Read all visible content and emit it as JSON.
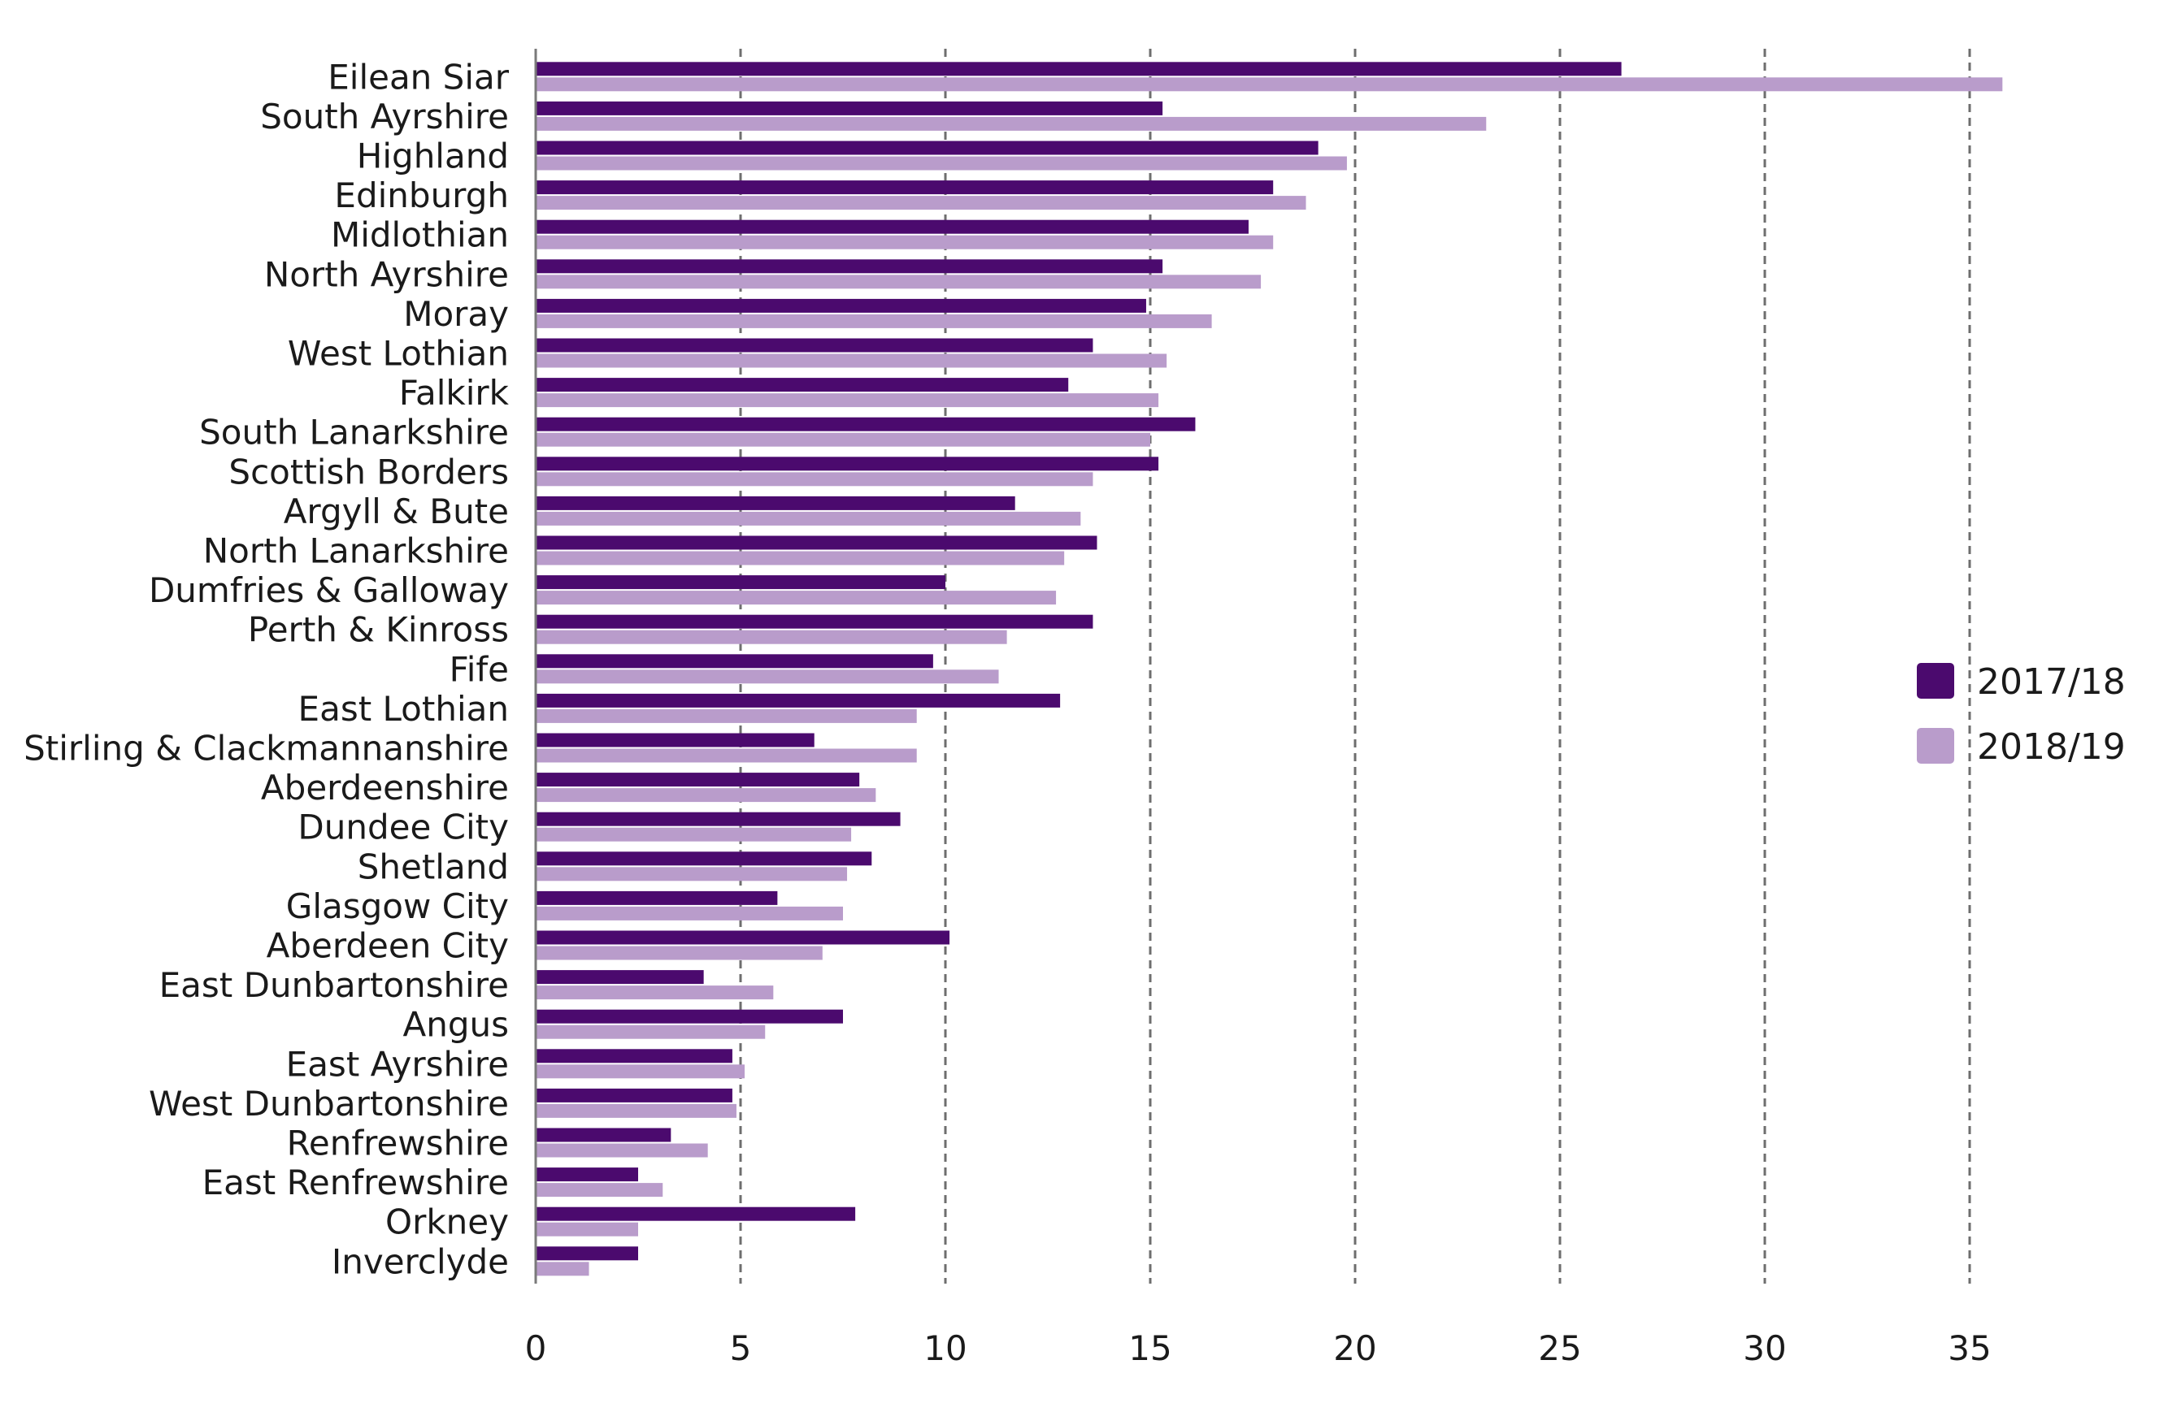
{
  "chart_data": {
    "type": "bar",
    "orientation": "horizontal",
    "title": "",
    "xlabel": "",
    "ylabel": "",
    "xlim": [
      0,
      35
    ],
    "xticks": [
      0,
      5,
      10,
      15,
      20,
      25,
      30,
      35
    ],
    "grid": "vertical dashed",
    "legend_position": "right",
    "categories": [
      "Eilean Siar",
      "South Ayrshire",
      "Highland",
      "Edinburgh",
      "Midlothian",
      "North Ayrshire",
      "Moray",
      "West Lothian",
      "Falkirk",
      "South Lanarkshire",
      "Scottish Borders",
      "Argyll & Bute",
      "North Lanarkshire",
      "Dumfries & Galloway",
      "Perth & Kinross",
      "Fife",
      "East Lothian",
      "Stirling & Clackmannanshire",
      "Aberdeenshire",
      "Dundee City",
      "Shetland",
      "Glasgow City",
      "Aberdeen City",
      "East Dunbartonshire",
      "Angus",
      "East Ayrshire",
      "West Dunbartonshire",
      "Renfrewshire",
      "East Renfrewshire",
      "Orkney",
      "Inverclyde"
    ],
    "series": [
      {
        "name": "2017/18",
        "color": "#4b0a6e",
        "values": [
          26.5,
          15.3,
          19.1,
          18.0,
          17.4,
          15.3,
          14.9,
          13.6,
          13.0,
          16.1,
          15.2,
          11.7,
          13.7,
          10.0,
          13.6,
          9.7,
          12.8,
          6.8,
          7.9,
          8.9,
          8.2,
          5.9,
          10.1,
          4.1,
          7.5,
          4.8,
          4.8,
          3.3,
          2.5,
          7.8,
          2.5
        ]
      },
      {
        "name": "2018/19",
        "color": "#b99ccb",
        "values": [
          35.8,
          23.2,
          19.8,
          18.8,
          18.0,
          17.7,
          16.5,
          15.4,
          15.2,
          15.0,
          13.6,
          13.3,
          12.9,
          12.7,
          11.5,
          11.3,
          9.3,
          9.3,
          8.3,
          7.7,
          7.6,
          7.5,
          7.0,
          5.8,
          5.6,
          5.1,
          4.9,
          4.2,
          3.1,
          2.5,
          1.3
        ]
      }
    ]
  }
}
